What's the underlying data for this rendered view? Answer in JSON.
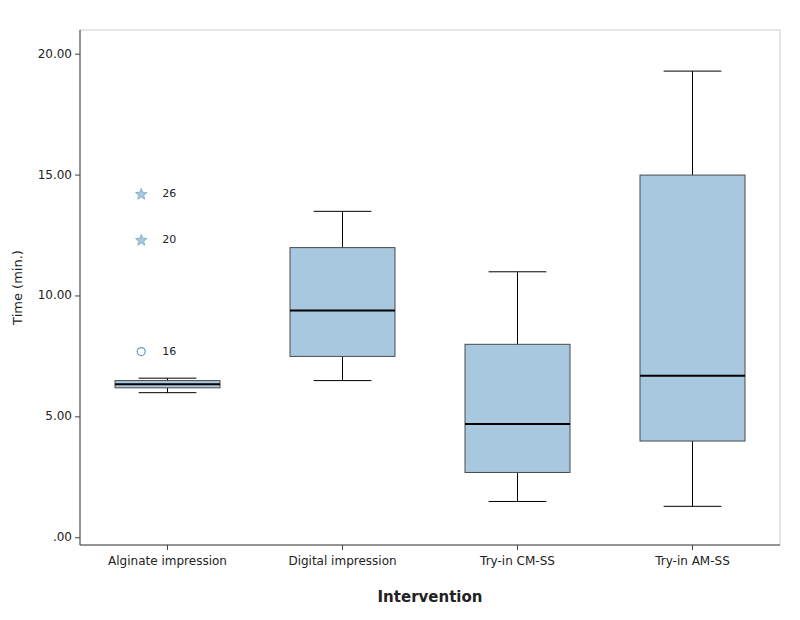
{
  "chart_data": {
    "type": "box",
    "xlabel": "Intervention",
    "ylabel": "Time (min.)",
    "categories": [
      "Alginate impression",
      "Digital impression",
      "Try-in CM-SS",
      "Try-in AM-SS"
    ],
    "boxes": [
      {
        "q1": 6.2,
        "median": 6.35,
        "q3": 6.5,
        "whisker_low": 6.0,
        "whisker_high": 6.6,
        "outliers": [
          7.7
        ],
        "outlier_labels": [
          "16"
        ],
        "far_outliers": [
          12.3,
          14.2
        ],
        "far_outlier_labels": [
          "20",
          "26"
        ]
      },
      {
        "q1": 7.5,
        "median": 9.4,
        "q3": 12.0,
        "whisker_low": 6.5,
        "whisker_high": 13.5,
        "outliers": [],
        "outlier_labels": [],
        "far_outliers": [],
        "far_outlier_labels": []
      },
      {
        "q1": 2.7,
        "median": 4.7,
        "q3": 8.0,
        "whisker_low": 1.5,
        "whisker_high": 11.0,
        "outliers": [],
        "outlier_labels": [],
        "far_outliers": [],
        "far_outlier_labels": []
      },
      {
        "q1": 4.0,
        "median": 6.7,
        "q3": 15.0,
        "whisker_low": 1.3,
        "whisker_high": 19.3,
        "outliers": [],
        "outlier_labels": [],
        "far_outliers": [],
        "far_outlier_labels": []
      }
    ],
    "color": "#a8c8e0",
    "ylim": [
      -0.3,
      21.0
    ],
    "yticks": [
      {
        "value": 0.0,
        "label": ".00"
      },
      {
        "value": 5.0,
        "label": "5.00"
      },
      {
        "value": 10.0,
        "label": "10.00"
      },
      {
        "value": 15.0,
        "label": "15.00"
      },
      {
        "value": 20.0,
        "label": "20.00"
      }
    ],
    "grid": false
  }
}
